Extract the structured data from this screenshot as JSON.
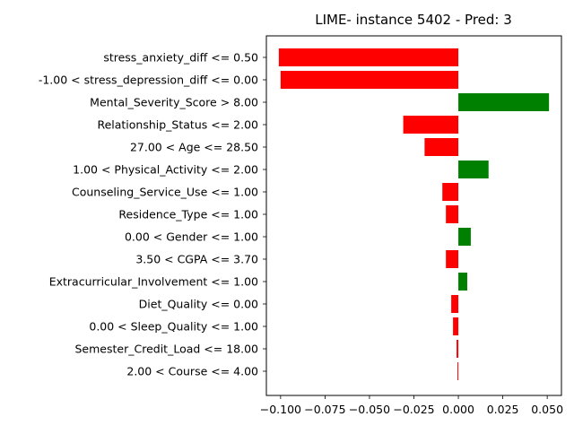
{
  "chart_data": {
    "type": "bar",
    "orientation": "horizontal",
    "title": "LIME- instance 5402 - Pred: 3",
    "xlabel": "",
    "ylabel": "",
    "xlim": [
      -0.108,
      0.058
    ],
    "xticks": [
      -0.1,
      -0.075,
      -0.05,
      -0.025,
      0.0,
      0.025,
      0.05
    ],
    "xtick_labels": [
      "−0.100",
      "−0.075",
      "−0.050",
      "−0.025",
      "0.000",
      "0.025",
      "0.050"
    ],
    "grid": false,
    "legend": "none",
    "colors": {
      "positive": "#008000",
      "negative": "#ff0000"
    },
    "categories": [
      "stress_anxiety_diff <= 0.50",
      "-1.00 < stress_depression_diff <= 0.00",
      "Mental_Severity_Score > 8.00",
      "Relationship_Status <= 2.00",
      "27.00 < Age <= 28.50",
      "1.00 < Physical_Activity <= 2.00",
      "Counseling_Service_Use <= 1.00",
      "Residence_Type <= 1.00",
      "0.00 < Gender <= 1.00",
      "3.50 < CGPA <= 3.70",
      "Extracurricular_Involvement <= 1.00",
      "Diet_Quality <= 0.00",
      "0.00 < Sleep_Quality <= 1.00",
      "Semester_Credit_Load <= 18.00",
      "2.00 < Course <= 4.00"
    ],
    "values": [
      -0.101,
      -0.1,
      0.051,
      -0.031,
      -0.019,
      0.017,
      -0.009,
      -0.007,
      0.007,
      -0.007,
      0.005,
      -0.004,
      -0.003,
      -0.001,
      -0.0005
    ]
  }
}
